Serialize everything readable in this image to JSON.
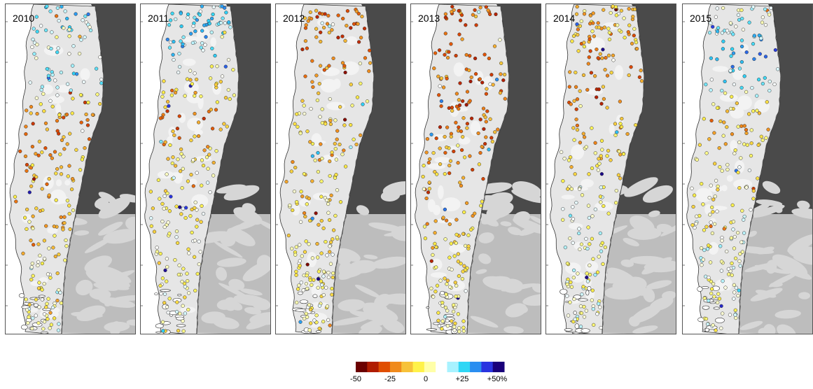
{
  "figure": {
    "panels": [
      {
        "year": "2010",
        "seed": 11,
        "profile": [
          [
            0,
            0.55
          ],
          [
            0.12,
            0.1
          ],
          [
            0.22,
            0.5
          ],
          [
            0.35,
            -0.55
          ],
          [
            0.55,
            -0.35
          ],
          [
            0.7,
            -0.18
          ],
          [
            0.82,
            -0.08
          ],
          [
            1.0,
            0.05
          ]
        ]
      },
      {
        "year": "2011",
        "seed": 23,
        "profile": [
          [
            0,
            0.4
          ],
          [
            0.14,
            0.45
          ],
          [
            0.24,
            -0.2
          ],
          [
            0.35,
            -0.6
          ],
          [
            0.5,
            -0.05
          ],
          [
            0.7,
            -0.05
          ],
          [
            0.85,
            -0.05
          ],
          [
            1.0,
            0.0
          ]
        ]
      },
      {
        "year": "2012",
        "seed": 37,
        "profile": [
          [
            0,
            -0.6
          ],
          [
            0.2,
            -0.55
          ],
          [
            0.3,
            -0.05
          ],
          [
            0.42,
            -0.3
          ],
          [
            0.55,
            -0.2
          ],
          [
            0.72,
            -0.1
          ],
          [
            0.85,
            -0.05
          ],
          [
            1.0,
            0.0
          ]
        ]
      },
      {
        "year": "2013",
        "seed": 51,
        "profile": [
          [
            0,
            -0.55
          ],
          [
            0.3,
            -0.6
          ],
          [
            0.5,
            -0.45
          ],
          [
            0.65,
            -0.3
          ],
          [
            0.78,
            -0.12
          ],
          [
            1.0,
            -0.03
          ]
        ]
      },
      {
        "year": "2014",
        "seed": 67,
        "profile": [
          [
            0,
            -0.15
          ],
          [
            0.12,
            -0.4
          ],
          [
            0.3,
            -0.6
          ],
          [
            0.42,
            -0.25
          ],
          [
            0.6,
            0.05
          ],
          [
            0.75,
            0.1
          ],
          [
            1.0,
            0.05
          ]
        ]
      },
      {
        "year": "2015",
        "seed": 83,
        "profile": [
          [
            0,
            0.05
          ],
          [
            0.14,
            0.6
          ],
          [
            0.24,
            0.35
          ],
          [
            0.34,
            -0.4
          ],
          [
            0.45,
            -0.1
          ],
          [
            0.6,
            -0.05
          ],
          [
            0.75,
            0.1
          ],
          [
            1.0,
            0.05
          ]
        ]
      }
    ],
    "colorbar": {
      "ticks": [
        "-50",
        "-25",
        "0",
        "+25",
        "+50%"
      ],
      "tick_values": [
        -50,
        -25,
        0,
        25,
        50
      ],
      "range": [
        -50,
        50
      ],
      "colors": [
        "#6b0000",
        "#b01c00",
        "#e04e00",
        "#f08a1c",
        "#f7c23a",
        "#fff24a",
        "#ffffa8",
        "#ffffff",
        "#a8f2ff",
        "#2fd6f5",
        "#2a8ef0",
        "#2a34e0",
        "#19007a"
      ]
    },
    "map_colors": {
      "land": "#e6e6e6",
      "land_light": "#f3f3f3",
      "mountain_dark": "#4a4a4a",
      "mountain_mid": "#6e6e6e",
      "argentina": "#bdbdbd",
      "coast": "#333333"
    }
  }
}
